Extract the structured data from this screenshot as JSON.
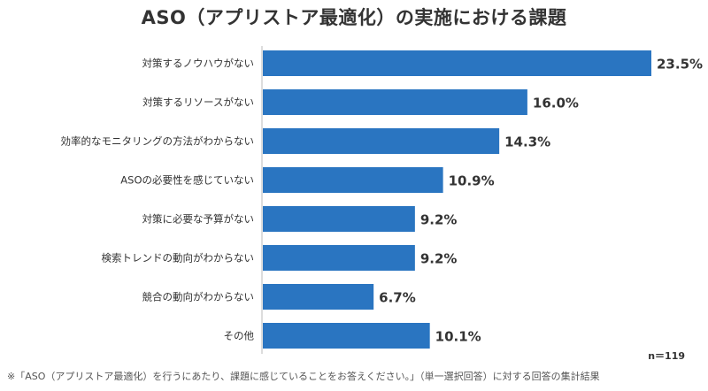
{
  "chart_data": {
    "type": "bar",
    "orientation": "horizontal",
    "title": "ASO（アプリストア最適化）の実施における課題",
    "categories": [
      "対策するノウハウがない",
      "対策するリソースがない",
      "効率的なモニタリングの方法がわからない",
      "ASOの必要性を感じていない",
      "対策に必要な予算がない",
      "検索トレンドの動向がわからない",
      "競合の動向がわからない",
      "その他"
    ],
    "values": [
      23.5,
      16.0,
      14.3,
      10.9,
      9.2,
      9.2,
      6.7,
      10.1
    ],
    "value_labels": [
      "23.5%",
      "16.0%",
      "14.3%",
      "10.9%",
      "9.2%",
      "9.2%",
      "6.7%",
      "10.1%"
    ],
    "unit": "%",
    "xlim": [
      0,
      23.5
    ],
    "bar_color": "#2a75c1",
    "grid": false,
    "legend": "none"
  },
  "sample_size": "n＝119",
  "footnote": "※「ASO（アプリストア最適化）を行うにあたり、課題に感じていることをお答えください。」（単一選択回答）に対する回答の集計結果"
}
